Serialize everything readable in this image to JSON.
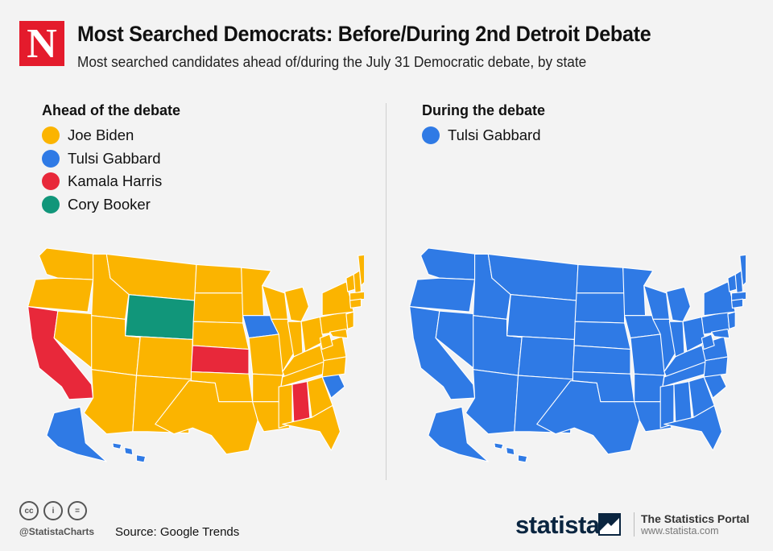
{
  "header": {
    "logo_letter": "N",
    "title": "Most Searched Democrats: Before/During 2nd Detroit Debate",
    "subtitle": "Most searched candidates ahead of/during the July 31 Democratic debate, by state"
  },
  "colors": {
    "biden": "#fbb400",
    "gabbard": "#2f7ae5",
    "harris": "#e8283a",
    "booker": "#11967a",
    "state_border": "#ffffff"
  },
  "left_panel": {
    "heading": "Ahead of the debate",
    "legend": [
      {
        "label": "Joe Biden",
        "color": "#fbb400"
      },
      {
        "label": "Tulsi Gabbard",
        "color": "#2f7ae5"
      },
      {
        "label": "Kamala Harris",
        "color": "#e8283a"
      },
      {
        "label": "Cory Booker",
        "color": "#11967a"
      }
    ],
    "state_leaders": {
      "default": "Joe Biden",
      "California": "Kamala Harris",
      "Kansas": "Kamala Harris",
      "Alabama": "Kamala Harris",
      "Wyoming": "Cory Booker",
      "Iowa": "Tulsi Gabbard",
      "South Carolina": "Tulsi Gabbard",
      "Alaska": "Tulsi Gabbard",
      "Hawaii": "Tulsi Gabbard"
    }
  },
  "right_panel": {
    "heading": "During the debate",
    "legend": [
      {
        "label": "Tulsi Gabbard",
        "color": "#2f7ae5"
      }
    ],
    "state_leaders": {
      "default": "Tulsi Gabbard"
    }
  },
  "footer": {
    "handle": "@StatistaCharts",
    "source": "Source: Google Trends",
    "brand": "statista",
    "portal": "The Statistics Portal",
    "site": "www.statista.com",
    "license_icons": [
      "cc-icon",
      "by-icon",
      "nd-icon"
    ],
    "license_glyphs": [
      "cc",
      "i",
      "="
    ]
  }
}
